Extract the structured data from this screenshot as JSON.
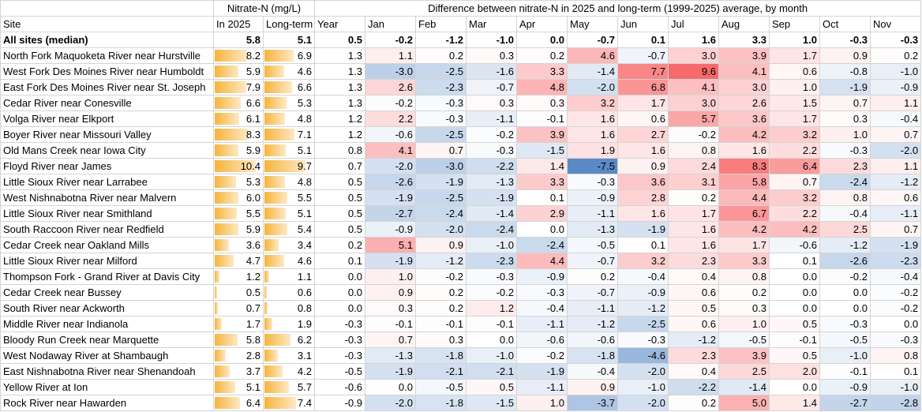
{
  "table": {
    "group_headers": [
      "Nitrate-N (mg/L)",
      "Difference between nitrate-N in 2025 and long-term (1999-2025) average, by month"
    ],
    "columns": [
      "Site",
      "In 2025",
      "Long-term",
      "Year",
      "Jan",
      "Feb",
      "Mar",
      "Apr",
      "May",
      "Jun",
      "Jul",
      "Aug",
      "Sep",
      "Oct",
      "Nov"
    ],
    "rows": [
      [
        "All sites (median)",
        "5.8",
        "5.1",
        "0.5",
        "-0.2",
        "-1.2",
        "-1.0",
        "0.0",
        "-0.7",
        "0.1",
        "1.6",
        "3.3",
        "1.0",
        "-0.3",
        "-0.3"
      ],
      [
        "North Fork Maquoketa River near Hurstville",
        "8.2",
        "6.9",
        "1.3",
        "1.1",
        "0.2",
        "0.3",
        "0.2",
        "4.6",
        "-0.7",
        "3.0",
        "3.9",
        "1.7",
        "0.9",
        "0.2"
      ],
      [
        "West Fork Des Moines River near Humboldt",
        "5.9",
        "4.6",
        "1.3",
        "-3.0",
        "-2.5",
        "-1.6",
        "3.3",
        "-1.4",
        "7.7",
        "9.6",
        "4.1",
        "0.6",
        "-0.8",
        "-1.0"
      ],
      [
        "East Fork Des Moines River near St. Joseph",
        "7.9",
        "6.6",
        "1.3",
        "2.6",
        "-2.3",
        "-0.7",
        "4.8",
        "-2.0",
        "6.8",
        "4.1",
        "3.0",
        "1.0",
        "-1.9",
        "-0.9"
      ],
      [
        "Cedar River near Conesville",
        "6.6",
        "5.3",
        "1.3",
        "-0.2",
        "-0.3",
        "0.3",
        "0.3",
        "3.2",
        "1.7",
        "3.0",
        "2.6",
        "1.5",
        "0.7",
        "1.1"
      ],
      [
        "Volga River near Elkport",
        "6.1",
        "4.8",
        "1.2",
        "2.2",
        "-0.3",
        "-1.1",
        "-0.1",
        "1.6",
        "0.6",
        "5.7",
        "3.6",
        "1.7",
        "0.3",
        "-0.4"
      ],
      [
        "Boyer River near Missouri Valley",
        "8.3",
        "7.1",
        "1.2",
        "-0.6",
        "-2.5",
        "-0.2",
        "3.9",
        "1.6",
        "2.7",
        "-0.2",
        "4.2",
        "3.2",
        "1.0",
        "0.7"
      ],
      [
        "Old Mans Creek near Iowa City",
        "5.9",
        "5.1",
        "0.8",
        "4.1",
        "0.7",
        "-0.3",
        "-1.5",
        "1.9",
        "1.6",
        "0.8",
        "1.6",
        "2.2",
        "-0.3",
        "-2.0"
      ],
      [
        "Floyd River near James",
        "10.4",
        "9.7",
        "0.7",
        "-2.0",
        "-3.0",
        "-2.2",
        "1.4",
        "-7.5",
        "0.9",
        "2.4",
        "8.3",
        "6.4",
        "2.3",
        "1.1"
      ],
      [
        "Little Sioux River near Larrabee",
        "5.3",
        "4.8",
        "0.5",
        "-2.6",
        "-1.9",
        "-1.3",
        "3.3",
        "-0.3",
        "3.6",
        "3.1",
        "5.8",
        "0.7",
        "-2.4",
        "-1.2"
      ],
      [
        "West Nishnabotna River near Malvern",
        "6.0",
        "5.5",
        "0.5",
        "-1.9",
        "-2.5",
        "-1.9",
        "0.1",
        "-0.9",
        "2.8",
        "0.2",
        "4.4",
        "3.2",
        "0.8",
        "0.6"
      ],
      [
        "Little Sioux River near Smithland",
        "5.5",
        "5.1",
        "0.5",
        "-2.7",
        "-2.4",
        "-1.4",
        "2.9",
        "-1.1",
        "1.6",
        "1.7",
        "6.7",
        "2.2",
        "-0.4",
        "-1.1"
      ],
      [
        "South Raccoon River near Redfield",
        "5.9",
        "5.4",
        "0.5",
        "-0.9",
        "-2.0",
        "-2.4",
        "0.0",
        "-1.3",
        "-1.9",
        "1.6",
        "4.2",
        "4.2",
        "2.5",
        "0.7"
      ],
      [
        "Cedar Creek near Oakland Mills",
        "3.6",
        "3.4",
        "0.2",
        "5.1",
        "0.9",
        "-1.0",
        "-2.4",
        "-0.5",
        "0.1",
        "1.6",
        "1.7",
        "-0.6",
        "-1.2",
        "-1.9"
      ],
      [
        "Little Sioux River near Milford",
        "4.7",
        "4.6",
        "0.1",
        "-1.9",
        "-1.2",
        "-2.3",
        "4.4",
        "-0.7",
        "3.2",
        "2.3",
        "3.3",
        "0.1",
        "-2.6",
        "-2.3"
      ],
      [
        "Thompson Fork - Grand River at Davis City",
        "1.2",
        "1.1",
        "0.0",
        "1.0",
        "-0.2",
        "-0.3",
        "-0.9",
        "0.2",
        "-0.4",
        "0.4",
        "0.8",
        "0.0",
        "-0.2",
        "-0.4"
      ],
      [
        "Cedar Creek near Bussey",
        "0.5",
        "0.6",
        "0.0",
        "0.9",
        "0.2",
        "-0.2",
        "-0.3",
        "-0.7",
        "-0.9",
        "0.6",
        "0.2",
        "0.0",
        "0.0",
        "-0.2"
      ],
      [
        "South River near Ackworth",
        "0.7",
        "0.8",
        "0.0",
        "0.3",
        "0.2",
        "1.2",
        "-0.4",
        "-1.1",
        "-1.2",
        "0.5",
        "0.3",
        "0.0",
        "0.0",
        "-0.2"
      ],
      [
        "Middle River near Indianola",
        "1.7",
        "1.9",
        "-0.3",
        "-0.1",
        "-0.1",
        "-0.1",
        "-1.1",
        "-1.2",
        "-2.5",
        "0.6",
        "1.0",
        "0.5",
        "-0.3",
        "0.0"
      ],
      [
        "Bloody Run Creek near Marquette",
        "5.8",
        "6.2",
        "-0.3",
        "0.7",
        "0.3",
        "0.0",
        "-0.6",
        "-0.6",
        "-0.3",
        "-1.2",
        "-0.5",
        "-0.1",
        "-0.5",
        "-0.3"
      ],
      [
        "West Nodaway River at Shambaugh",
        "2.8",
        "3.1",
        "-0.3",
        "-1.3",
        "-1.8",
        "-1.0",
        "-0.2",
        "-1.8",
        "-4.6",
        "2.3",
        "3.9",
        "0.5",
        "-1.0",
        "0.8"
      ],
      [
        "East Nishnabotna River near Shenandoah",
        "3.7",
        "4.2",
        "-0.5",
        "-1.9",
        "-2.1",
        "-2.1",
        "-1.9",
        "-0.4",
        "-2.0",
        "0.4",
        "2.5",
        "2.0",
        "-0.1",
        "0.1"
      ],
      [
        "Yellow River at Ion",
        "5.1",
        "5.7",
        "-0.6",
        "0.0",
        "-0.5",
        "0.5",
        "-1.1",
        "0.9",
        "-1.0",
        "-2.2",
        "-1.4",
        "0.0",
        "-0.9",
        "-1.0"
      ],
      [
        "Rock River near Hawarden",
        "6.4",
        "7.4",
        "-0.9",
        "-2.0",
        "-1.8",
        "-1.5",
        "1.0",
        "-3.7",
        "-2.0",
        "0.2",
        "5.0",
        "1.4",
        "-2.7",
        "-2.8"
      ]
    ]
  }
}
